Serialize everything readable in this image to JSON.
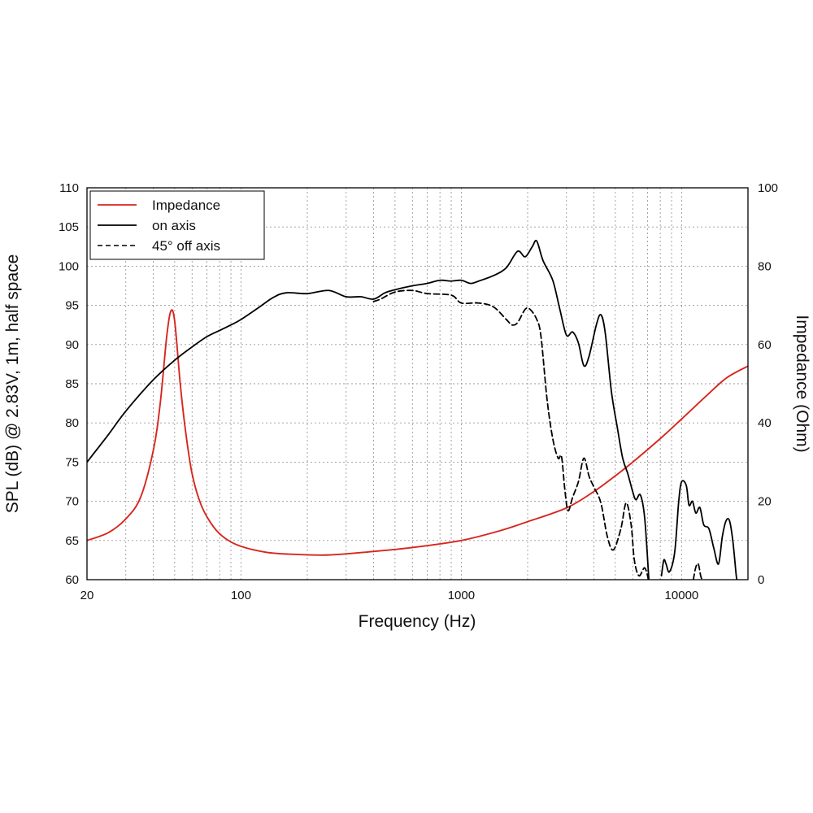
{
  "chart_data": {
    "type": "line",
    "xlabel": "Frequency (Hz)",
    "ylabel_left": "SPL (dB) @ 2.83V, 1m, half space",
    "ylabel_right": "Impedance (Ohm)",
    "x_scale": "log",
    "xlim": [
      20,
      20000
    ],
    "ylim_left": [
      60,
      110
    ],
    "ylim_right": [
      0,
      100
    ],
    "x_tick_labels": [
      "20",
      "100",
      "1000",
      "10000"
    ],
    "x_ticks": [
      20,
      100,
      1000,
      10000
    ],
    "y_left_ticks": [
      60,
      65,
      70,
      75,
      80,
      85,
      90,
      95,
      100,
      105,
      110
    ],
    "y_right_ticks": [
      0,
      20,
      40,
      60,
      80,
      100
    ],
    "grid": true,
    "legend_position": "top-left",
    "series": [
      {
        "name": "Impedance",
        "axis": "right",
        "color": "#d7261e",
        "style": "solid",
        "points": [
          [
            20,
            10
          ],
          [
            25,
            12
          ],
          [
            30,
            15.5
          ],
          [
            35,
            21
          ],
          [
            40,
            33
          ],
          [
            43,
            45
          ],
          [
            46,
            62
          ],
          [
            48,
            68.5
          ],
          [
            50,
            66
          ],
          [
            53,
            50
          ],
          [
            56,
            38
          ],
          [
            60,
            27
          ],
          [
            66,
            19
          ],
          [
            75,
            13.5
          ],
          [
            85,
            10.5
          ],
          [
            100,
            8.5
          ],
          [
            130,
            7
          ],
          [
            170,
            6.5
          ],
          [
            250,
            6.3
          ],
          [
            400,
            7.2
          ],
          [
            600,
            8.2
          ],
          [
            1000,
            10
          ],
          [
            1500,
            12.5
          ],
          [
            2000,
            14.8
          ],
          [
            3000,
            18.3
          ],
          [
            4000,
            22.5
          ],
          [
            5000,
            26.5
          ],
          [
            6000,
            30
          ],
          [
            8000,
            36
          ],
          [
            10000,
            41
          ],
          [
            13000,
            47
          ],
          [
            16000,
            51.5
          ],
          [
            20000,
            54.5
          ]
        ]
      },
      {
        "name": "on axis",
        "axis": "left",
        "color": "#000000",
        "style": "solid",
        "points": [
          [
            20,
            75
          ],
          [
            25,
            78.5
          ],
          [
            30,
            81.5
          ],
          [
            40,
            85.5
          ],
          [
            50,
            88
          ],
          [
            60,
            89.7
          ],
          [
            70,
            91
          ],
          [
            80,
            91.8
          ],
          [
            90,
            92.5
          ],
          [
            100,
            93.2
          ],
          [
            120,
            94.7
          ],
          [
            140,
            96
          ],
          [
            160,
            96.6
          ],
          [
            200,
            96.5
          ],
          [
            250,
            96.9
          ],
          [
            300,
            96.1
          ],
          [
            350,
            96.1
          ],
          [
            400,
            95.8
          ],
          [
            450,
            96.6
          ],
          [
            500,
            97
          ],
          [
            600,
            97.5
          ],
          [
            700,
            97.8
          ],
          [
            800,
            98.2
          ],
          [
            900,
            98.1
          ],
          [
            1000,
            98.2
          ],
          [
            1100,
            97.8
          ],
          [
            1200,
            98.1
          ],
          [
            1400,
            98.8
          ],
          [
            1600,
            99.8
          ],
          [
            1800,
            101.9
          ],
          [
            1950,
            101.2
          ],
          [
            2100,
            102.5
          ],
          [
            2200,
            103.2
          ],
          [
            2350,
            100.7
          ],
          [
            2600,
            98.2
          ],
          [
            2800,
            94.5
          ],
          [
            3000,
            91.2
          ],
          [
            3200,
            91.6
          ],
          [
            3400,
            90.2
          ],
          [
            3600,
            87.3
          ],
          [
            3800,
            88.5
          ],
          [
            4100,
            92.5
          ],
          [
            4300,
            93.8
          ],
          [
            4500,
            91.5
          ],
          [
            4800,
            84
          ],
          [
            5100,
            79.5
          ],
          [
            5400,
            75.5
          ],
          [
            5700,
            73.5
          ],
          [
            6000,
            71.2
          ],
          [
            6200,
            70.2
          ],
          [
            6500,
            70.8
          ],
          [
            6800,
            67.8
          ],
          [
            7100,
            60
          ]
        ]
      },
      {
        "name": "on axis",
        "axis": "left",
        "color": "#000000",
        "style": "solid",
        "points": [
          [
            8100,
            60.5
          ],
          [
            8300,
            62.5
          ],
          [
            8500,
            62
          ],
          [
            8800,
            61
          ],
          [
            9300,
            63.5
          ],
          [
            9700,
            70
          ],
          [
            10000,
            72.5
          ],
          [
            10500,
            72
          ],
          [
            10800,
            69.5
          ],
          [
            11200,
            70
          ],
          [
            11600,
            68.5
          ],
          [
            12100,
            69.2
          ],
          [
            12600,
            67
          ],
          [
            13300,
            66.5
          ],
          [
            14000,
            64
          ],
          [
            14700,
            62
          ],
          [
            15300,
            65.5
          ],
          [
            15900,
            67.5
          ],
          [
            16500,
            67.5
          ],
          [
            17100,
            64.8
          ],
          [
            17700,
            60.5
          ],
          [
            17900,
            60
          ]
        ]
      },
      {
        "name": "45° off axis",
        "axis": "left",
        "color": "#000000",
        "style": "dashed",
        "points": [
          [
            400,
            95.5
          ],
          [
            430,
            95.8
          ],
          [
            500,
            96.7
          ],
          [
            600,
            96.9
          ],
          [
            700,
            96.5
          ],
          [
            900,
            96.3
          ],
          [
            1000,
            95.3
          ],
          [
            1200,
            95.3
          ],
          [
            1400,
            94.8
          ],
          [
            1600,
            93.2
          ],
          [
            1700,
            92.5
          ],
          [
            1800,
            92.8
          ],
          [
            1950,
            94.5
          ],
          [
            2050,
            94.5
          ],
          [
            2200,
            93.2
          ],
          [
            2300,
            91
          ],
          [
            2450,
            83
          ],
          [
            2600,
            78
          ],
          [
            2750,
            75.5
          ],
          [
            2850,
            75.7
          ],
          [
            2950,
            71.5
          ],
          [
            3050,
            68.8
          ],
          [
            3200,
            70.5
          ],
          [
            3400,
            72.5
          ],
          [
            3600,
            75.5
          ],
          [
            3800,
            73.2
          ],
          [
            4000,
            71.8
          ],
          [
            4300,
            69.8
          ],
          [
            4600,
            65.5
          ],
          [
            4900,
            63.8
          ],
          [
            5300,
            66.5
          ],
          [
            5600,
            69.8
          ],
          [
            5900,
            67
          ],
          [
            6100,
            62.5
          ],
          [
            6400,
            60.5
          ],
          [
            6800,
            61.5
          ],
          [
            7100,
            59.8
          ]
        ]
      },
      {
        "name": "45° off axis",
        "axis": "left",
        "color": "#000000",
        "style": "dashed",
        "points": [
          [
            11300,
            60
          ],
          [
            11600,
            61.6
          ],
          [
            11900,
            62
          ],
          [
            12200,
            60.5
          ],
          [
            12400,
            60
          ]
        ]
      }
    ]
  }
}
